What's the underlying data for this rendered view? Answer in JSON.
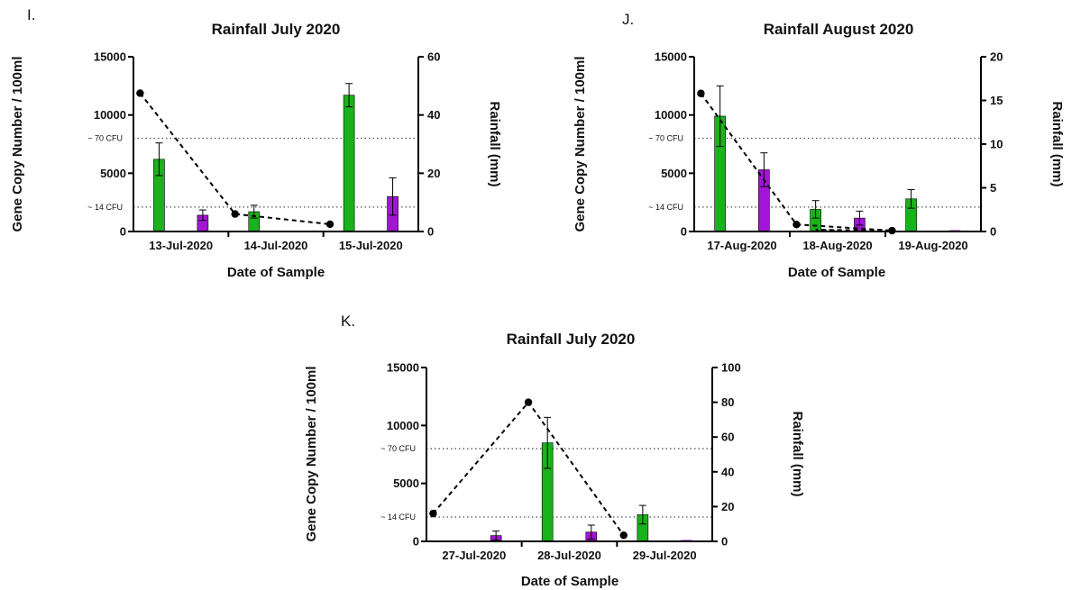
{
  "colors": {
    "green": "#19b21a",
    "purple": "#a214d6",
    "line": "#000000"
  },
  "chart_data": [
    {
      "type": "bar",
      "panel_label": "I.",
      "title": "Rainfall July 2020",
      "xlabel": "Date of Sample",
      "ylabel": "Gene  Copy Number / 100ml",
      "y2label": "Rainfall (mm)",
      "categories": [
        "13-Jul-2020",
        "14-Jul-2020",
        "15-Jul-2020"
      ],
      "ylim": [
        0,
        15000
      ],
      "yticks": [
        0,
        5000,
        10000,
        15000
      ],
      "y2lim": [
        0,
        60
      ],
      "y2ticks": [
        0,
        20,
        40,
        60
      ],
      "ref_lines": [
        {
          "label": "~ 70 CFU",
          "value": 8000
        },
        {
          "label": "~ 14 CFU",
          "value": 2100
        }
      ],
      "series": [
        {
          "color": "green",
          "values": [
            6200,
            1700,
            11700
          ],
          "errors": [
            1400,
            550,
            1000
          ]
        },
        {
          "color": "purple",
          "values": [
            1400,
            0,
            3000
          ],
          "errors": [
            450,
            0,
            1600
          ]
        }
      ],
      "line": {
        "axis": "y2",
        "values": [
          47.5,
          6,
          2.5
        ]
      }
    },
    {
      "type": "bar",
      "panel_label": "J.",
      "title": "Rainfall August 2020",
      "xlabel": "Date of Sample",
      "ylabel": "Gene  Copy Number / 100ml",
      "y2label": "Rainfall (mm)",
      "categories": [
        "17-Aug-2020",
        "18-Aug-2020",
        "19-Aug-2020"
      ],
      "ylim": [
        0,
        15000
      ],
      "yticks": [
        0,
        5000,
        10000,
        15000
      ],
      "y2lim": [
        0,
        20
      ],
      "y2ticks": [
        0,
        5,
        10,
        15,
        20
      ],
      "ref_lines": [
        {
          "label": "~ 70 CFU",
          "value": 8000
        },
        {
          "label": "~ 14 CFU",
          "value": 2100
        }
      ],
      "series": [
        {
          "color": "green",
          "values": [
            9900,
            1900,
            2800
          ],
          "errors": [
            2600,
            750,
            800
          ]
        },
        {
          "color": "purple",
          "values": [
            5300,
            1150,
            80
          ],
          "errors": [
            1450,
            600,
            0
          ]
        }
      ],
      "line": {
        "axis": "y2",
        "values": [
          15.8,
          0.8,
          0.1
        ],
        "tail": [
          0.2,
          0.1
        ]
      }
    },
    {
      "type": "bar",
      "panel_label": "K.",
      "title": "Rainfall July 2020",
      "xlabel": "Date of Sample",
      "ylabel": "Gene  Copy Number / 100ml",
      "y2label": "Rainfall (mm)",
      "categories": [
        "27-Jul-2020",
        "28-Jul-2020",
        "29-Jul-2020"
      ],
      "ylim": [
        0,
        15000
      ],
      "yticks": [
        0,
        5000,
        10000,
        15000
      ],
      "y2lim": [
        0,
        100
      ],
      "y2ticks": [
        0,
        20,
        40,
        60,
        80,
        100
      ],
      "ref_lines": [
        {
          "label": "~ 70 CFU",
          "value": 8000
        },
        {
          "label": "~ 14 CFU",
          "value": 2100
        }
      ],
      "series": [
        {
          "color": "green",
          "values": [
            0,
            8500,
            2300
          ],
          "errors": [
            0,
            2200,
            800
          ]
        },
        {
          "color": "purple",
          "values": [
            500,
            800,
            80
          ],
          "errors": [
            400,
            600,
            0
          ]
        }
      ],
      "line": {
        "axis": "y2",
        "values": [
          16,
          80,
          3.5
        ]
      }
    }
  ]
}
